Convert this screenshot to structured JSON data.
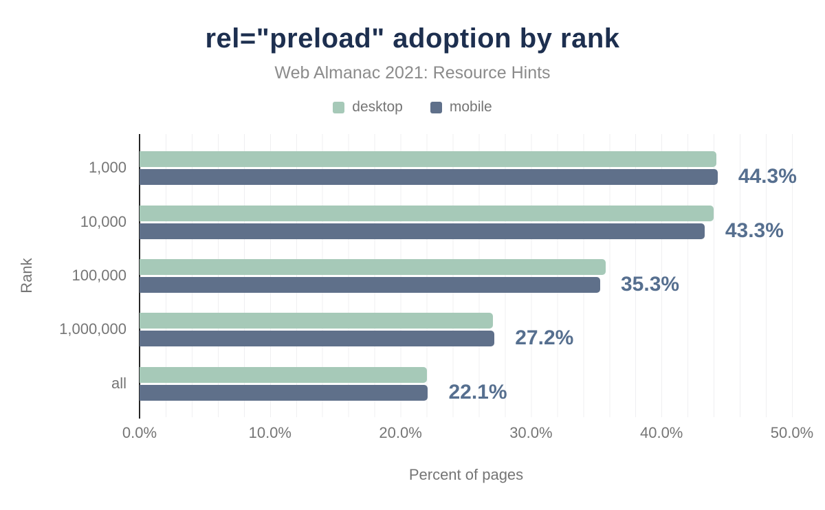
{
  "colors": {
    "background": "#ffffff",
    "title": "#1d2f4f",
    "subtitle": "#8b8b8b",
    "axis_text": "#757575",
    "gridline": "#efeff1",
    "axis_line": "#262626",
    "desktop": "#a6c9b8",
    "mobile": "#5f708a",
    "data_label": "#566f8f"
  },
  "chart_data": {
    "type": "bar",
    "orientation": "horizontal",
    "title": "rel=\"preload\" adoption by rank",
    "subtitle": "Web Almanac 2021: Resource Hints",
    "categories": [
      "1,000",
      "10,000",
      "100,000",
      "1,000,000",
      "all"
    ],
    "series": [
      {
        "name": "desktop",
        "color": "#a6c9b8",
        "values": [
          44.2,
          44.0,
          35.7,
          27.1,
          22.0
        ]
      },
      {
        "name": "mobile",
        "color": "#5f708a",
        "values": [
          44.3,
          43.3,
          35.3,
          27.2,
          22.1
        ]
      }
    ],
    "data_labels": [
      "44.3%",
      "43.3%",
      "35.3%",
      "27.2%",
      "22.1%"
    ],
    "data_labels_series": "mobile",
    "xlabel": "Percent of pages",
    "ylabel": "Rank",
    "xlim": [
      0,
      50
    ],
    "x_ticks": [
      "0.0%",
      "10.0%",
      "20.0%",
      "30.0%",
      "40.0%",
      "50.0%"
    ],
    "grid": "vertical minor gridlines every 2%",
    "legend_position": "top-center"
  }
}
